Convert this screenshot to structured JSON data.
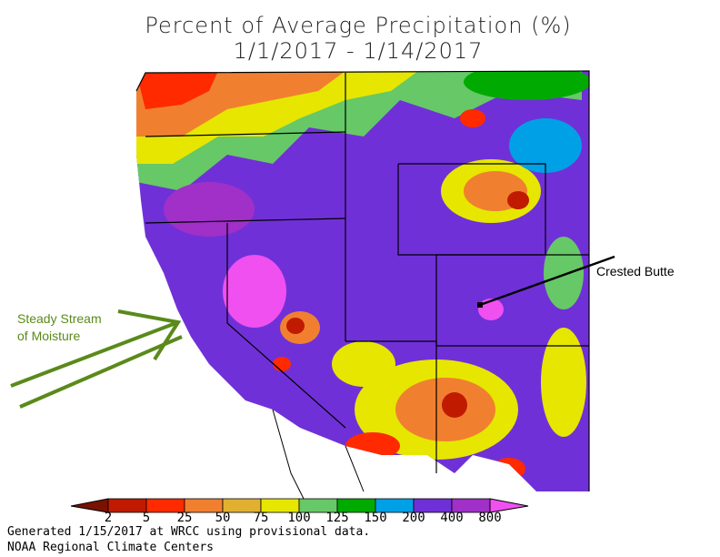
{
  "title_line1": "Percent of Average Precipitation (%)",
  "title_line2": "1/1/2017 - 1/14/2017",
  "annotations": {
    "crested_butte": "Crested Butte",
    "steady_stream_1": "Steady Stream",
    "steady_stream_2": "of Moisture"
  },
  "legend": {
    "ticks": [
      "2",
      "5",
      "25",
      "50",
      "75",
      "100",
      "125",
      "150",
      "200",
      "400",
      "800"
    ],
    "colors": [
      "#7a1200",
      "#c01a00",
      "#ff2a00",
      "#f08030",
      "#e2b030",
      "#e6e600",
      "#66c866",
      "#00aa00",
      "#00a0e6",
      "#7030d8",
      "#a030c8",
      "#f050f0"
    ]
  },
  "footer": {
    "line1": "Generated 1/15/2017 at WRCC using provisional data.",
    "line2": "NOAA Regional Climate Centers"
  },
  "colors": {
    "arrow": "#5a8a1a"
  }
}
